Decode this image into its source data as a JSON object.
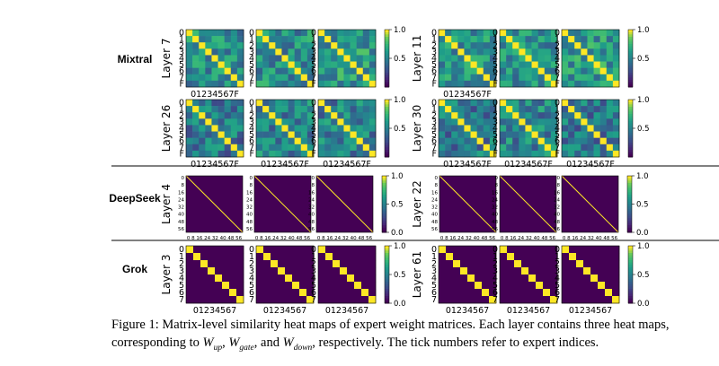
{
  "groups": [
    {
      "name": "Mixtral",
      "tick_labels": [
        "0",
        "1",
        "2",
        "3",
        "4",
        "5",
        "6",
        "7",
        "F"
      ],
      "x_tick_text": "01234567F",
      "colorbar_ticks": [
        "1.0",
        "0.5"
      ],
      "layers": [
        {
          "label": "Layer 7"
        },
        {
          "label": "Layer 11"
        },
        {
          "label": "Layer 26"
        },
        {
          "label": "Layer 30"
        }
      ]
    },
    {
      "name": "DeepSeek",
      "tick_labels": [
        "0",
        "8",
        "16",
        "24",
        "32",
        "40",
        "48",
        "56"
      ],
      "x_tick_text": "0 8 16 24 32 40 48 56",
      "colorbar_ticks": [
        "1.0",
        "0.5",
        "0.0"
      ],
      "layers": [
        {
          "label": "Layer 4"
        },
        {
          "label": "Layer 22"
        }
      ]
    },
    {
      "name": "Grok",
      "tick_labels": [
        "0",
        "1",
        "2",
        "3",
        "4",
        "5",
        "6",
        "7"
      ],
      "x_tick_text": "01234567",
      "colorbar_ticks": [
        "1.0",
        "0.5",
        "0.0"
      ],
      "layers": [
        {
          "label": "Layer 3"
        },
        {
          "label": "Layer 61"
        }
      ]
    }
  ],
  "colors": {
    "viridis_low": "#440154",
    "viridis_mid": "#21918c",
    "viridis_high": "#fde725",
    "separator": "#000000"
  },
  "caption": {
    "figure_label": "Figure 1:",
    "line1_text": "Matrix-level similarity heat maps of expert weight matrices.  Each layer contains three heat maps,",
    "line2_prefix": "corresponding to ",
    "w_up_base": "W",
    "w_up_sub": "up",
    "w_gate_base": "W",
    "w_gate_sub": "gate",
    "w_down_base": "W",
    "w_down_sub": "down",
    "sep1": ", ",
    "sep2": ", and ",
    "line2_suffix": ", respectively. The tick numbers refer to expert indices."
  },
  "chart_data": {
    "type": "heatmap",
    "description_source": "similarity between expert weight matrices, rendered as grids",
    "value_range": [
      0.0,
      1.0
    ],
    "matrices": [
      {
        "group": "Mixtral",
        "layer": "Layer 7",
        "kind": "W_up",
        "size": 9,
        "diag": 1.0,
        "offdiag": 0.55
      },
      {
        "group": "Mixtral",
        "layer": "Layer 7",
        "kind": "W_gate",
        "size": 9,
        "diag": 1.0,
        "offdiag": 0.55
      },
      {
        "group": "Mixtral",
        "layer": "Layer 7",
        "kind": "W_down",
        "size": 9,
        "diag": 1.0,
        "offdiag": 0.6
      },
      {
        "group": "Mixtral",
        "layer": "Layer 11",
        "kind": "W_up",
        "size": 9,
        "diag": 1.0,
        "offdiag": 0.55
      },
      {
        "group": "Mixtral",
        "layer": "Layer 11",
        "kind": "W_gate",
        "size": 9,
        "diag": 1.0,
        "offdiag": 0.55
      },
      {
        "group": "Mixtral",
        "layer": "Layer 11",
        "kind": "W_down",
        "size": 9,
        "diag": 1.0,
        "offdiag": 0.6
      },
      {
        "group": "Mixtral",
        "layer": "Layer 26",
        "kind": "W_up",
        "size": 9,
        "diag": 1.0,
        "offdiag": 0.45
      },
      {
        "group": "Mixtral",
        "layer": "Layer 26",
        "kind": "W_gate",
        "size": 9,
        "diag": 1.0,
        "offdiag": 0.5
      },
      {
        "group": "Mixtral",
        "layer": "Layer 26",
        "kind": "W_down",
        "size": 9,
        "diag": 1.0,
        "offdiag": 0.5
      },
      {
        "group": "Mixtral",
        "layer": "Layer 30",
        "kind": "W_up",
        "size": 9,
        "diag": 1.0,
        "offdiag": 0.45
      },
      {
        "group": "Mixtral",
        "layer": "Layer 30",
        "kind": "W_gate",
        "size": 9,
        "diag": 1.0,
        "offdiag": 0.5
      },
      {
        "group": "Mixtral",
        "layer": "Layer 30",
        "kind": "W_down",
        "size": 9,
        "diag": 1.0,
        "offdiag": 0.45
      },
      {
        "group": "DeepSeek",
        "layer": "Layer 4",
        "kind": "W_up",
        "size": 64,
        "diag": 1.0,
        "offdiag": 0.0
      },
      {
        "group": "DeepSeek",
        "layer": "Layer 4",
        "kind": "W_gate",
        "size": 64,
        "diag": 1.0,
        "offdiag": 0.0
      },
      {
        "group": "DeepSeek",
        "layer": "Layer 4",
        "kind": "W_down",
        "size": 64,
        "diag": 1.0,
        "offdiag": 0.0
      },
      {
        "group": "DeepSeek",
        "layer": "Layer 22",
        "kind": "W_up",
        "size": 64,
        "diag": 1.0,
        "offdiag": 0.0
      },
      {
        "group": "DeepSeek",
        "layer": "Layer 22",
        "kind": "W_gate",
        "size": 64,
        "diag": 1.0,
        "offdiag": 0.0
      },
      {
        "group": "DeepSeek",
        "layer": "Layer 22",
        "kind": "W_down",
        "size": 64,
        "diag": 1.0,
        "offdiag": 0.0
      },
      {
        "group": "Grok",
        "layer": "Layer 3",
        "kind": "W_up",
        "size": 8,
        "diag": 1.0,
        "offdiag": 0.0
      },
      {
        "group": "Grok",
        "layer": "Layer 3",
        "kind": "W_gate",
        "size": 8,
        "diag": 1.0,
        "offdiag": 0.0
      },
      {
        "group": "Grok",
        "layer": "Layer 3",
        "kind": "W_down",
        "size": 8,
        "diag": 1.0,
        "offdiag": 0.0
      },
      {
        "group": "Grok",
        "layer": "Layer 61",
        "kind": "W_up",
        "size": 8,
        "diag": 1.0,
        "offdiag": 0.0
      },
      {
        "group": "Grok",
        "layer": "Layer 61",
        "kind": "W_gate",
        "size": 8,
        "diag": 1.0,
        "offdiag": 0.0
      },
      {
        "group": "Grok",
        "layer": "Layer 61",
        "kind": "W_down",
        "size": 8,
        "diag": 1.0,
        "offdiag": 0.0
      }
    ]
  }
}
